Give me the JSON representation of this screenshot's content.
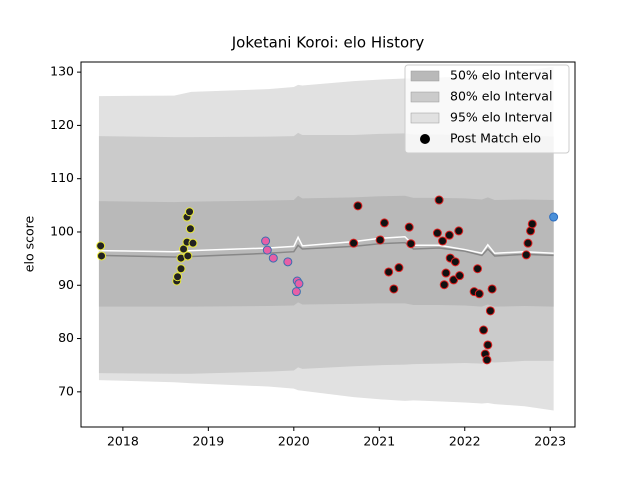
{
  "chart_data": {
    "type": "band",
    "title": "Joketani Koroi: elo History",
    "ylabel": "elo score",
    "xlim": [
      2017.51,
      2023.29
    ],
    "xticks": [
      2018,
      2019,
      2020,
      2021,
      2022,
      2023
    ],
    "ylim": [
      63.4,
      131.9
    ],
    "yticks": [
      70,
      80,
      90,
      100,
      110,
      120,
      130
    ],
    "x": [
      2017.72,
      2018.6,
      2018.8,
      2019.7,
      2020.0,
      2020.05,
      2020.1,
      2020.7,
      2021.0,
      2021.3,
      2021.4,
      2021.7,
      2022.0,
      2022.2,
      2022.27,
      2022.35,
      2022.7,
      2023.04
    ],
    "bands": [
      {
        "name": "95% elo Interval",
        "color": "#e1e1e1",
        "lower": [
          72.2,
          71.8,
          71.6,
          71.0,
          70.6,
          70.3,
          70.2,
          69.0,
          68.6,
          68.3,
          68.4,
          68.2,
          68.0,
          67.8,
          67.9,
          67.7,
          67.3,
          66.5
        ],
        "upper": [
          125.5,
          125.6,
          126.3,
          126.8,
          127.2,
          127.6,
          127.5,
          128.3,
          128.6,
          128.8,
          128.8,
          129.0,
          129.2,
          129.5,
          129.4,
          129.6,
          130.2,
          131.0
        ]
      },
      {
        "name": "80% elo Interval",
        "color": "#cbcbcb",
        "lower": [
          73.5,
          73.4,
          73.4,
          73.8,
          74.0,
          74.6,
          74.3,
          74.8,
          75.0,
          75.1,
          75.2,
          75.3,
          75.4,
          75.3,
          75.6,
          75.5,
          75.8,
          75.8
        ],
        "upper": [
          118.0,
          117.8,
          117.8,
          117.9,
          118.0,
          118.6,
          118.2,
          118.2,
          118.4,
          118.5,
          118.3,
          118.3,
          118.2,
          118.1,
          118.4,
          118.1,
          118.1,
          117.9
        ]
      },
      {
        "name": "50% elo Interval",
        "color": "#b9b9b9",
        "lower": [
          86.0,
          86.0,
          86.0,
          86.1,
          86.2,
          86.8,
          86.4,
          86.5,
          86.6,
          86.6,
          86.3,
          86.3,
          86.2,
          86.0,
          86.4,
          86.0,
          86.1,
          86.0
        ],
        "upper": [
          105.8,
          105.6,
          105.7,
          105.9,
          106.0,
          106.8,
          106.3,
          106.5,
          106.7,
          106.8,
          106.4,
          106.4,
          106.3,
          106.1,
          106.5,
          106.0,
          106.1,
          106.0
        ]
      }
    ],
    "series": [
      {
        "color": "#888888",
        "values": [
          95.6,
          95.3,
          95.4,
          96.0,
          96.3,
          97.5,
          96.8,
          97.3,
          97.8,
          98.0,
          96.8,
          97.0,
          96.4,
          95.6,
          96.8,
          95.5,
          95.8,
          95.6
        ]
      },
      {
        "color": "#ffffff",
        "values": [
          96.5,
          96.3,
          96.5,
          97.0,
          97.3,
          99.0,
          97.4,
          98.2,
          98.8,
          99.1,
          97.5,
          97.5,
          96.7,
          96.0,
          97.6,
          96.0,
          96.3,
          96.0
        ]
      }
    ],
    "markers": {
      "name": "Post Match elo",
      "color": "#000000",
      "groups": [
        {
          "color": "#222222",
          "edgecolor": "#e8e83a",
          "x": [
            2017.74,
            2017.75,
            2018.63,
            2018.64,
            2018.68,
            2018.68,
            2018.71,
            2018.75,
            2018.76,
            2018.75,
            2018.78,
            2018.79,
            2018.82
          ],
          "values": [
            97.4,
            95.5,
            90.8,
            91.6,
            93.1,
            95.1,
            96.8,
            98.1,
            95.5,
            102.8,
            103.8,
            100.6,
            97.9
          ]
        },
        {
          "color": "#e75fa6",
          "edgecolor": "#3a6fb0",
          "x": [
            2019.67,
            2019.69,
            2019.76,
            2019.93,
            2020.04,
            2020.03,
            2020.06
          ],
          "values": [
            98.3,
            96.6,
            95.1,
            94.4,
            90.8,
            88.8,
            90.3
          ]
        },
        {
          "color": "#111111",
          "edgecolor": "#e02020",
          "x": [
            2020.7,
            2020.75,
            2021.01,
            2021.06,
            2021.11,
            2021.17,
            2021.23,
            2021.35,
            2021.37,
            2021.7,
            2021.68,
            2021.74,
            2021.76,
            2021.78,
            2021.82,
            2021.83,
            2021.87,
            2021.89,
            2021.93,
            2021.94,
            2022.11,
            2022.15,
            2022.17,
            2022.22,
            2022.24,
            2022.26,
            2022.27,
            2022.3,
            2022.32,
            2022.72,
            2022.74,
            2022.77,
            2022.79
          ],
          "values": [
            97.9,
            104.9,
            98.5,
            101.7,
            92.5,
            89.3,
            93.3,
            100.9,
            97.8,
            106.0,
            99.8,
            98.3,
            90.1,
            92.3,
            99.4,
            95.1,
            91.0,
            94.4,
            100.2,
            91.8,
            88.8,
            93.1,
            88.4,
            81.6,
            77.1,
            76.0,
            78.8,
            85.2,
            89.3,
            95.7,
            97.9,
            100.2,
            101.5
          ]
        },
        {
          "color": "#4a90d9",
          "edgecolor": "#2a6cc0",
          "x": [
            2023.04
          ],
          "values": [
            102.8
          ]
        }
      ]
    }
  }
}
